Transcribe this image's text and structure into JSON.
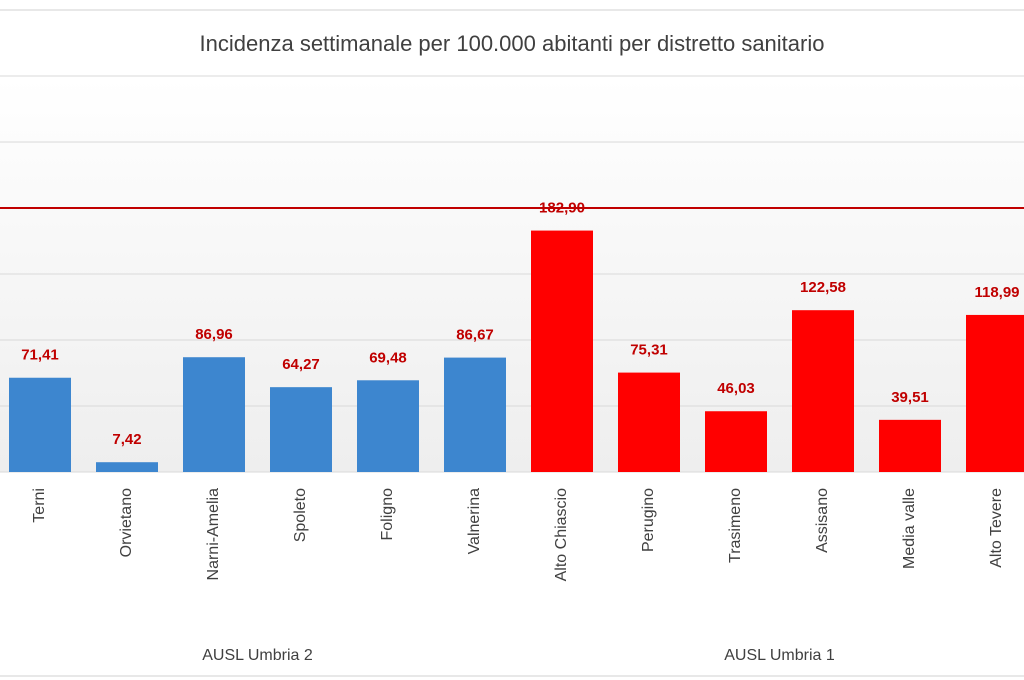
{
  "chart_data": {
    "type": "bar",
    "title": "Incidenza settimanale per 100.000 abitanti per distretto sanitario",
    "categories": [
      "Terni",
      "Orvietano",
      "Narni-Amelia",
      "Spoleto",
      "Foligno",
      "Valnerina",
      "Alto Chiascio",
      "Perugino",
      "Trasimeno",
      "Assisano",
      "Media valle",
      "Alto Tevere"
    ],
    "series": [
      {
        "name": "AUSL Umbria 2",
        "color": "#3d86cf",
        "values": [
          71.41,
          7.42,
          86.96,
          64.27,
          69.48,
          86.67,
          null,
          null,
          null,
          null,
          null,
          null
        ],
        "value_labels": [
          "71,41",
          "7,42",
          "86,96",
          "64,27",
          "69,48",
          "86,67",
          null,
          null,
          null,
          null,
          null,
          null
        ]
      },
      {
        "name": "AUSL Umbria 1",
        "color": "#ff0000",
        "values": [
          null,
          null,
          null,
          null,
          null,
          null,
          182.9,
          75.31,
          46.03,
          122.58,
          39.51,
          118.99
        ],
        "value_labels": [
          null,
          null,
          null,
          null,
          null,
          null,
          "182,90",
          "75,31",
          "46,03",
          "122,58",
          "39,51",
          "118,99"
        ]
      }
    ],
    "threshold": 200,
    "threshold_color": "#c00000",
    "ylim": [
      0,
      300
    ],
    "yticks": [
      0,
      50,
      100,
      150,
      200,
      250,
      300
    ],
    "grid": true
  }
}
